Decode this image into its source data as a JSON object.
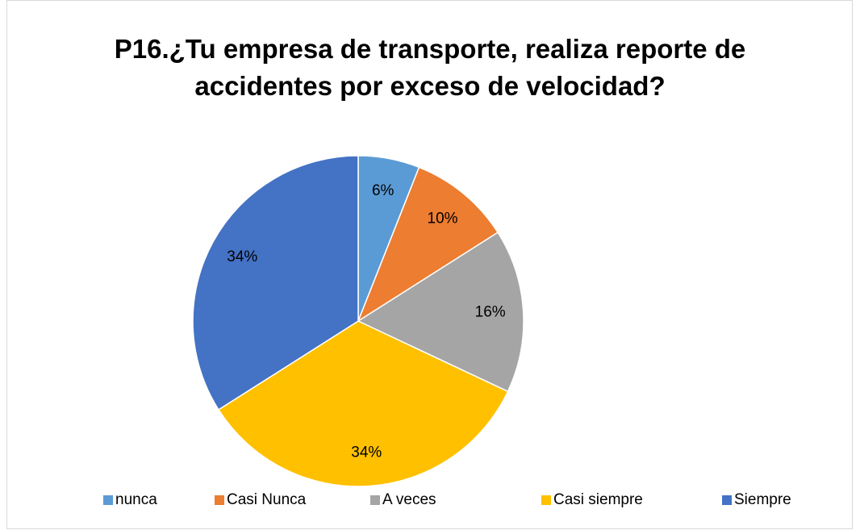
{
  "chart_data": {
    "type": "pie",
    "title": "P16.¿Tu empresa de transporte, realiza reporte de accidentes por exceso de velocidad?",
    "categories": [
      "nunca",
      "Casi Nunca",
      "A veces",
      "Casi siempre",
      "Siempre"
    ],
    "values": [
      6,
      10,
      16,
      34,
      34
    ],
    "value_labels": [
      "6%",
      "10%",
      "16%",
      "34%",
      "34%"
    ],
    "colors": [
      "#5b9bd5",
      "#ed7d31",
      "#a5a5a5",
      "#ffc000",
      "#4472c4"
    ],
    "legend": "bottom"
  }
}
